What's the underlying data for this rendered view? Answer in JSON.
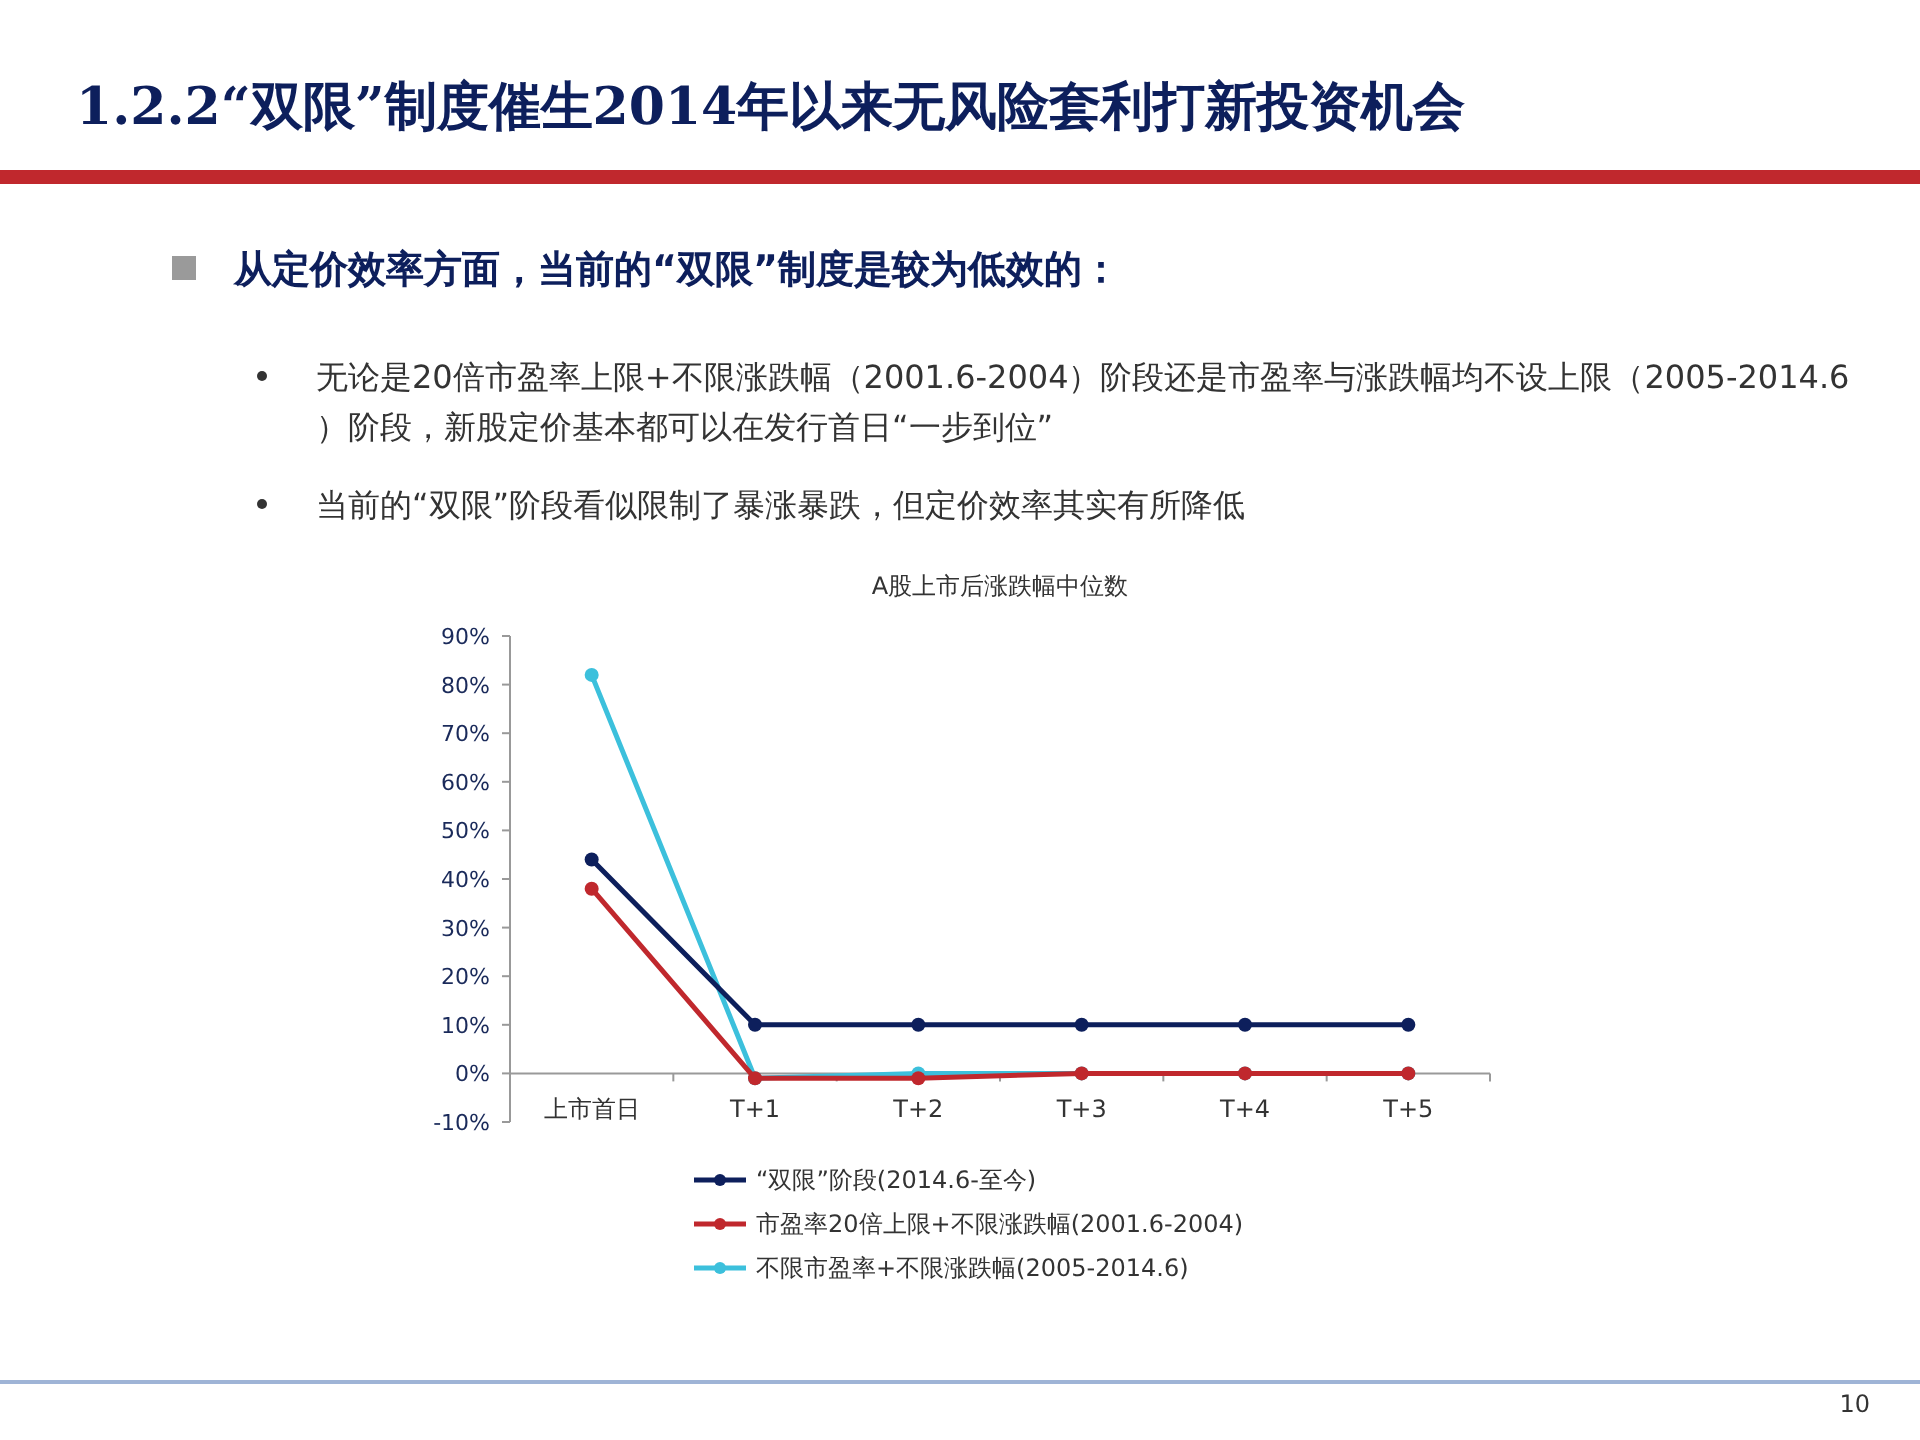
{
  "chart_data": {
    "type": "line",
    "title": "A股上市后涨跌幅中位数",
    "categories": [
      "上市首日",
      "T+1",
      "T+2",
      "T+3",
      "T+4",
      "T+5"
    ],
    "series": [
      {
        "name": "“双限”阶段(2014.6-至今)",
        "color": "#0d1f5c",
        "values": [
          44,
          10,
          10,
          10,
          10,
          10
        ]
      },
      {
        "name": "市盈率20倍上限+不限涨跌幅(2001.6-2004)",
        "color": "#c0282d",
        "values": [
          38,
          -1,
          -1,
          0,
          0,
          0
        ]
      },
      {
        "name": "不限市盈率+不限涨跌幅(2005-2014.6)",
        "color": "#3cc0dc",
        "values": [
          82,
          -1,
          0,
          0,
          0,
          0
        ]
      }
    ],
    "ylim": [
      -10,
      90
    ],
    "yticks": [
      {
        "value": -10,
        "label": "-10%"
      },
      {
        "value": 0,
        "label": "0%"
      },
      {
        "value": 10,
        "label": "10%"
      },
      {
        "value": 20,
        "label": "20%"
      },
      {
        "value": 30,
        "label": "30%"
      },
      {
        "value": 40,
        "label": "40%"
      },
      {
        "value": 50,
        "label": "50%"
      },
      {
        "value": 60,
        "label": "60%"
      },
      {
        "value": 70,
        "label": "70%"
      },
      {
        "value": 80,
        "label": "80%"
      },
      {
        "value": 90,
        "label": "90%"
      }
    ],
    "marker": "circle",
    "legend": "bottom",
    "grid": false,
    "annotations": [
      "1.2.2“双限”制度催生2014年以来无风险套利打新投资机会",
      "从定价效率方面，当前的“双限”制度是较为低效的：",
      "无论是20倍市盈率上限+不限涨跌幅（2001.6-2004）阶段还是市盈率与涨跌幅均不设上限（2005-2014.6）阶段，新股定价基本都可以在发行首日“一步到位”",
      "当前的“双限”阶段看似限制了暴涨暴跌，但定价效率其实有所降低",
      "10"
    ]
  }
}
